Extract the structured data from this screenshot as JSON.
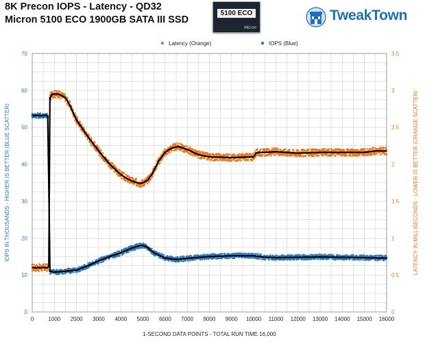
{
  "title_line1": "8K Precon IOPS - Latency - QD32",
  "title_line2": "Micron 5100 ECO 1900GB SATA III SSD",
  "product_image": {
    "label": "5100 ECO",
    "brand": "Micron"
  },
  "logo": {
    "text": "TweakTown",
    "icon": "tweaktown-emblem-icon"
  },
  "colors": {
    "latency": "#e8771e",
    "iops": "#2a78b8",
    "trend": "#000000",
    "left_axis": "#2a78b8",
    "right_axis": "#e8771e",
    "grid": "#d0d0d0"
  },
  "chart_data": {
    "type": "scatter",
    "xlabel": "1-SECOND DATA POINTS - TOTAL RUN TIME 16,000",
    "ylabel_left": "IOPS IN THOUSANDS - HIGHER IS BETTER (BLUE SCATTER)",
    "ylabel_right": "LATENCY IN MILLISECONDS - LOWER IS BETTER (ORANGE SCATTER)",
    "xlim": [
      0,
      16000
    ],
    "ylim_left": [
      0,
      70
    ],
    "ylim_right": [
      0,
      3.5
    ],
    "x_ticks": [
      0,
      1000,
      2000,
      3000,
      4000,
      5000,
      6000,
      7000,
      8000,
      9000,
      10000,
      11000,
      12000,
      13000,
      14000,
      15000,
      16000
    ],
    "y_ticks_left": [
      0,
      10,
      20,
      30,
      40,
      50,
      60,
      70
    ],
    "y_ticks_right": [
      "0",
      "0.5",
      "1",
      "1.5",
      "2",
      "2.5",
      "3",
      "3.5"
    ],
    "grid": true,
    "legend_position": "top-center",
    "series": [
      {
        "name": "Latency (Orange)",
        "axis": "right",
        "x": [
          0,
          650,
          700,
          750,
          800,
          900,
          1000,
          1200,
          1500,
          1700,
          2000,
          2500,
          3000,
          3500,
          4000,
          4300,
          4600,
          4900,
          5000,
          5200,
          5400,
          5700,
          6000,
          6300,
          6600,
          7000,
          7500,
          8000,
          9000,
          10000,
          10100,
          10200,
          10500,
          11000,
          12000,
          13000,
          14000,
          15000,
          15500,
          16000
        ],
        "y": [
          0.6,
          0.6,
          0.6,
          0.62,
          2.9,
          2.95,
          2.95,
          2.95,
          2.9,
          2.8,
          2.6,
          2.38,
          2.18,
          2.0,
          1.86,
          1.8,
          1.76,
          1.74,
          1.75,
          1.78,
          1.86,
          2.04,
          2.16,
          2.22,
          2.24,
          2.2,
          2.13,
          2.1,
          2.09,
          2.1,
          2.15,
          2.16,
          2.16,
          2.17,
          2.15,
          2.16,
          2.16,
          2.16,
          2.18,
          2.18
        ]
      },
      {
        "name": "IOPS (Blue)",
        "axis": "left",
        "x": [
          0,
          650,
          700,
          760,
          800,
          1000,
          1500,
          2000,
          2500,
          3000,
          3500,
          4000,
          4500,
          4900,
          5000,
          5200,
          5500,
          6000,
          6500,
          7000,
          8000,
          9000,
          10000,
          10500,
          11000,
          12000,
          13000,
          14000,
          15000,
          16000
        ],
        "y": [
          53.2,
          53.2,
          53.0,
          30.0,
          11.0,
          10.8,
          11.0,
          11.3,
          12.5,
          13.8,
          15.0,
          16.0,
          17.3,
          18.0,
          18.0,
          17.5,
          16.0,
          14.6,
          14.2,
          14.5,
          15.0,
          15.2,
          15.2,
          14.8,
          14.7,
          14.8,
          14.9,
          14.8,
          14.7,
          14.6
        ]
      }
    ]
  }
}
